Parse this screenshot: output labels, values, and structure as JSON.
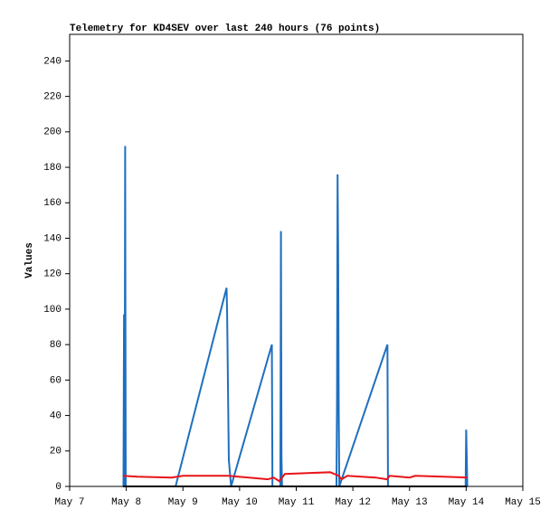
{
  "chart_data": {
    "type": "line",
    "title": "Telemetry for KD4SEV over last 240 hours (76 points)",
    "y_label": "Values",
    "xlim": [
      7,
      15
    ],
    "xticks": [
      {
        "value": 7,
        "label": "May 7"
      },
      {
        "value": 8,
        "label": "May 8"
      },
      {
        "value": 9,
        "label": "May 9"
      },
      {
        "value": 10,
        "label": "May 10"
      },
      {
        "value": 11,
        "label": "May 11"
      },
      {
        "value": 12,
        "label": "May 12"
      },
      {
        "value": 13,
        "label": "May 13"
      },
      {
        "value": 14,
        "label": "May 14"
      },
      {
        "value": 15,
        "label": "May 15"
      }
    ],
    "ylim": [
      0,
      255
    ],
    "yticks": [
      0,
      20,
      40,
      60,
      80,
      100,
      120,
      140,
      160,
      180,
      200,
      220,
      240
    ],
    "series": [
      {
        "color": "#1f6fbf",
        "x": [
          7.95,
          7.96,
          7.97,
          7.98,
          7.99,
          8.87,
          9.77,
          9.78,
          9.79,
          9.8,
          9.81,
          9.85,
          10.57,
          10.58,
          10.72,
          10.73,
          10.74,
          10.75,
          11.71,
          11.72,
          11.73,
          11.74,
          11.75,
          11.76,
          12.61,
          12.62,
          13.99,
          14.0,
          14.01,
          14.02
        ],
        "values": [
          0,
          97,
          0,
          192,
          0,
          0,
          112,
          98,
          70,
          42,
          15,
          0,
          80,
          0,
          0,
          144,
          16,
          0,
          0,
          48,
          176,
          132,
          45,
          0,
          80,
          0,
          0,
          32,
          17,
          0
        ]
      },
      {
        "color": "#e8141a",
        "x": [
          7.94,
          8.2,
          8.8,
          9.0,
          9.8,
          10.5,
          10.6,
          10.7,
          10.8,
          11.2,
          11.6,
          11.75,
          11.8,
          11.9,
          12.4,
          12.6,
          12.65,
          13.0,
          13.1,
          14.02
        ],
        "values": [
          6,
          5.5,
          5,
          6,
          6,
          4,
          5,
          3,
          7,
          7.5,
          8,
          6,
          4,
          6,
          5,
          4,
          6,
          5,
          6,
          5
        ]
      },
      {
        "color": "#000000",
        "x": [
          7.94,
          14.02
        ],
        "values": [
          0,
          0
        ]
      }
    ]
  }
}
